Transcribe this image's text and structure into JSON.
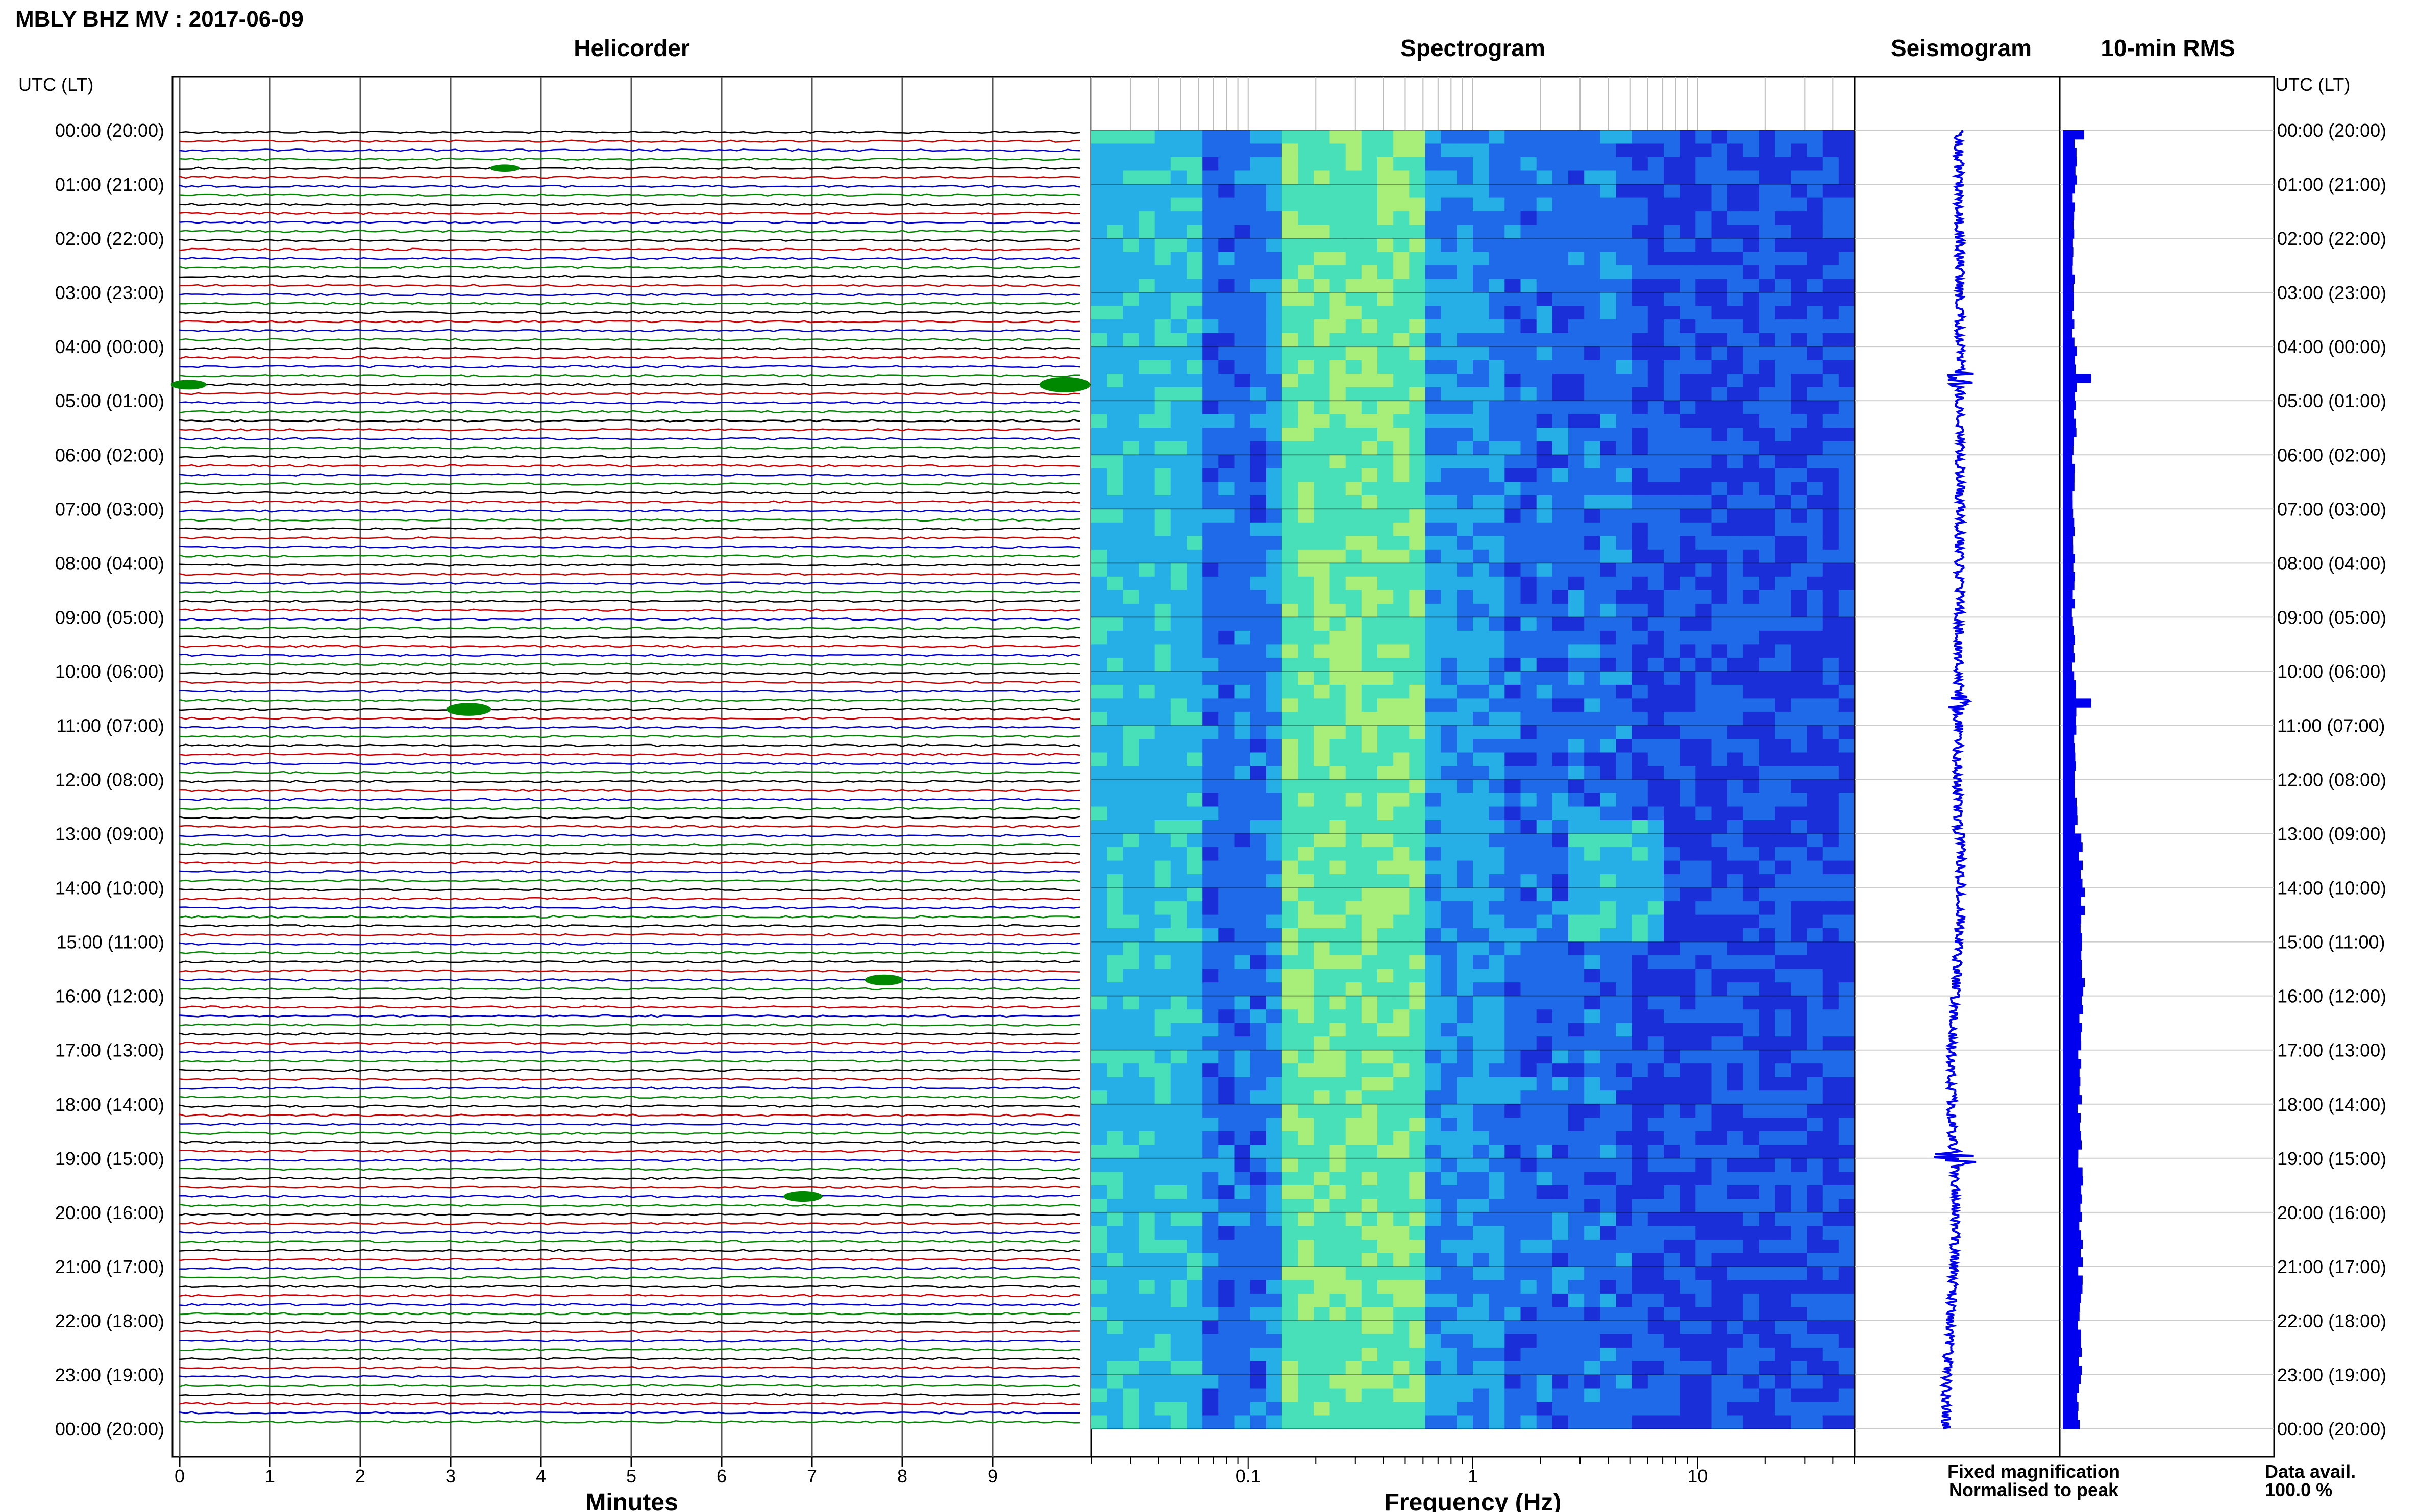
{
  "title": "MBLY BHZ MV : 2017-06-09",
  "panels": {
    "helicorder": "Helicorder",
    "spectrogram": "Spectrogram",
    "seismogram": "Seismogram",
    "rms": "10-min RMS"
  },
  "time_axis": {
    "header_left": "UTC (LT)",
    "header_right": "UTC (LT)",
    "hour_labels": [
      "00:00 (20:00)",
      "01:00 (21:00)",
      "02:00 (22:00)",
      "03:00 (23:00)",
      "04:00 (00:00)",
      "05:00 (01:00)",
      "06:00 (02:00)",
      "07:00 (03:00)",
      "08:00 (04:00)",
      "09:00 (05:00)",
      "10:00 (06:00)",
      "11:00 (07:00)",
      "12:00 (08:00)",
      "13:00 (09:00)",
      "14:00 (10:00)",
      "15:00 (11:00)",
      "16:00 (12:00)",
      "17:00 (13:00)",
      "18:00 (14:00)",
      "19:00 (15:00)",
      "20:00 (16:00)",
      "21:00 (17:00)",
      "22:00 (18:00)",
      "23:00 (19:00)",
      "00:00 (20:00)"
    ]
  },
  "legend": {
    "fixed": "Fixed magnification",
    "fixed_color": "#0000ee",
    "normalised": "Normalised to peak",
    "normalised_color": "#ee0000",
    "avail_label": "Data avail.",
    "avail_value": "100.0 %"
  },
  "chart_data": [
    {
      "type": "line",
      "name": "helicorder",
      "title": "Helicorder",
      "xlabel": "Minutes",
      "x_ticks": [
        0,
        1,
        2,
        3,
        4,
        5,
        6,
        7,
        8,
        9
      ],
      "xlim": [
        0,
        10
      ],
      "traces_per_hour": 6,
      "hours": 24,
      "trace_colors": [
        "#000000",
        "#cc0000",
        "#0000cc",
        "#008800"
      ],
      "events": [
        {
          "hour": 0,
          "minute": 3.6,
          "amp": 0.3
        },
        {
          "hour": 4,
          "minute": 9.8,
          "amp": 1.0
        },
        {
          "hour": 4,
          "minute": 0.1,
          "amp": 0.5
        },
        {
          "hour": 10,
          "minute": 3.2,
          "amp": 0.8
        },
        {
          "hour": 15,
          "minute": 7.8,
          "amp": 0.6
        },
        {
          "hour": 19,
          "minute": 6.9,
          "amp": 0.6
        }
      ]
    },
    {
      "type": "heatmap",
      "name": "spectrogram",
      "title": "Spectrogram",
      "xlabel": "Frequency (Hz)",
      "x_scale": "log",
      "xlim": [
        0.02,
        50
      ],
      "x_tick_labels": [
        "0.1",
        "1",
        "10"
      ],
      "x_tick_values": [
        0.1,
        1,
        10
      ],
      "colormap": [
        "#1b2fd8",
        "#1f6ae8",
        "#26aee6",
        "#47e0b8",
        "#a8ef7a"
      ],
      "features": [
        {
          "label": "energy band",
          "freq_min": 0.15,
          "freq_max": 0.6
        },
        {
          "label": "noise patch",
          "hour_start": 12.6,
          "hour_end": 14.8,
          "freq_min": 2.5,
          "freq_max": 7
        }
      ]
    },
    {
      "type": "line",
      "name": "seismogram",
      "title": "Seismogram",
      "line_color": "#0000ee",
      "hours": 24,
      "spikes": [
        {
          "hour": 4.6,
          "amp": 0.5
        },
        {
          "hour": 10.6,
          "amp": 0.4
        },
        {
          "hour": 19.0,
          "amp": 0.9
        }
      ]
    },
    {
      "type": "bar",
      "name": "rms",
      "title": "10-min RMS",
      "orientation": "horizontal",
      "bar_color": "#0000ee",
      "intervals_per_hour": 6,
      "hours": 24,
      "level_by_hour": [
        0.55,
        0.45,
        0.45,
        0.45,
        0.55,
        0.5,
        0.45,
        0.5,
        0.45,
        0.45,
        0.5,
        0.5,
        0.55,
        0.8,
        0.85,
        0.85,
        0.75,
        0.75,
        0.7,
        0.75,
        0.75,
        0.75,
        0.7,
        0.7
      ],
      "peaks": [
        {
          "hour": 0.0,
          "level": 0.9
        },
        {
          "hour": 4.5,
          "level": 1.2
        },
        {
          "hour": 10.5,
          "level": 1.2
        }
      ]
    }
  ]
}
